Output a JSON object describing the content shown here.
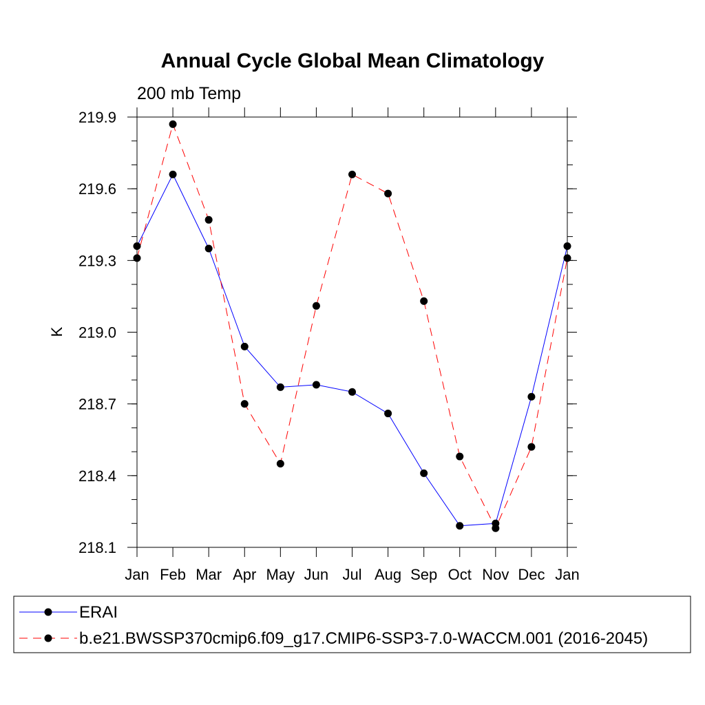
{
  "chart_data": {
    "type": "line",
    "title": "Annual Cycle Global Mean Climatology",
    "subtitle": "200 mb Temp",
    "xlabel": "",
    "ylabel": "K",
    "categories": [
      "Jan",
      "Feb",
      "Mar",
      "Apr",
      "May",
      "Jun",
      "Jul",
      "Aug",
      "Sep",
      "Oct",
      "Nov",
      "Dec",
      "Jan"
    ],
    "yticks": [
      218.1,
      218.4,
      218.7,
      219.0,
      219.3,
      219.6,
      219.9
    ],
    "ytick_labels": [
      "218.1",
      "218.4",
      "218.7",
      "219.0",
      "219.3",
      "219.6",
      "219.9"
    ],
    "ylim": [
      218.1,
      219.9
    ],
    "y_minor_step": 0.1,
    "grid": false,
    "legend_position": "bottom",
    "series": [
      {
        "name": "ERAI",
        "color": "#0000ff",
        "dash": "solid",
        "values": [
          219.36,
          219.66,
          219.35,
          218.94,
          218.77,
          218.78,
          218.75,
          218.66,
          218.41,
          218.19,
          218.2,
          218.73,
          219.36
        ]
      },
      {
        "name": "b.e21.BWSSP370cmip6.f09_g17.CMIP6-SSP3-7.0-WACCM.001 (2016-2045)",
        "color": "#ff0000",
        "dash": "dashed",
        "values": [
          219.31,
          219.87,
          219.47,
          218.7,
          218.45,
          219.11,
          219.66,
          219.58,
          219.13,
          218.48,
          218.18,
          218.52,
          219.31
        ]
      }
    ]
  }
}
